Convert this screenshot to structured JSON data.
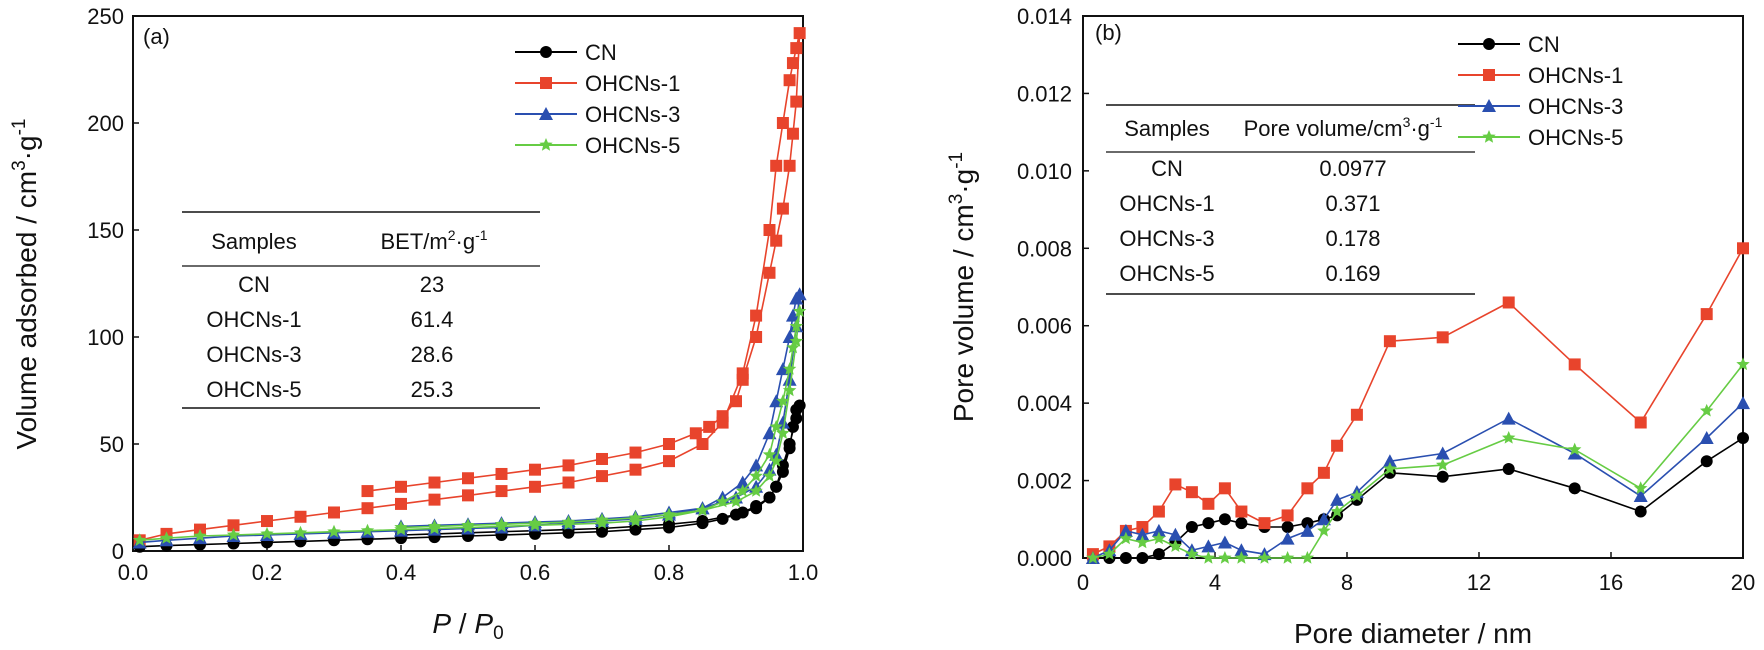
{
  "colors": {
    "CN": "#000000",
    "OHCNs-1": "#e8442c",
    "OHCNs-3": "#2a4fb0",
    "OHCNs-5": "#66cc44"
  },
  "chart_data": [
    {
      "type": "line",
      "panel": "(a)",
      "xlabel": "P / P0",
      "ylabel": "Volume adsorbed / cm³·g⁻¹",
      "xlim": [
        0,
        1.0
      ],
      "ylim": [
        0,
        250
      ],
      "xticks": [
        "0.0",
        "0.2",
        "0.4",
        "0.6",
        "0.8",
        "1.0"
      ],
      "yticks": [
        "0",
        "50",
        "100",
        "150",
        "200",
        "250"
      ],
      "legend_position": "top-right",
      "series": [
        {
          "name": "CN",
          "marker": "circle",
          "x": [
            0.01,
            0.05,
            0.1,
            0.15,
            0.2,
            0.25,
            0.3,
            0.35,
            0.4,
            0.45,
            0.5,
            0.55,
            0.6,
            0.65,
            0.7,
            0.75,
            0.8,
            0.85,
            0.88,
            0.91,
            0.93,
            0.95,
            0.96,
            0.97,
            0.98,
            0.985,
            0.99,
            0.995,
            0.99,
            0.98,
            0.97,
            0.96,
            0.95,
            0.93,
            0.9,
            0.85,
            0.8,
            0.75,
            0.7,
            0.65,
            0.6,
            0.55,
            0.5,
            0.45,
            0.4
          ],
          "y": [
            2,
            2.5,
            3,
            3.5,
            4,
            4.5,
            5,
            5.5,
            6,
            6.5,
            7,
            7.5,
            8,
            8.5,
            9,
            10,
            11,
            13,
            15,
            18,
            21,
            25,
            30,
            37,
            48,
            58,
            66,
            68,
            62,
            50,
            40,
            30,
            25,
            20,
            17,
            14,
            12.5,
            11.5,
            10.5,
            10,
            9.5,
            9,
            8.5,
            8,
            7.5
          ]
        },
        {
          "name": "OHCNs-1",
          "marker": "square",
          "x": [
            0.01,
            0.05,
            0.1,
            0.15,
            0.2,
            0.25,
            0.3,
            0.35,
            0.4,
            0.45,
            0.5,
            0.55,
            0.6,
            0.65,
            0.7,
            0.75,
            0.8,
            0.85,
            0.88,
            0.91,
            0.93,
            0.95,
            0.96,
            0.97,
            0.98,
            0.985,
            0.99,
            0.995,
            0.99,
            0.985,
            0.98,
            0.97,
            0.96,
            0.95,
            0.93,
            0.91,
            0.9,
            0.88,
            0.86,
            0.84,
            0.8,
            0.75,
            0.7,
            0.65,
            0.6,
            0.55,
            0.5,
            0.45,
            0.4,
            0.35
          ],
          "y": [
            5,
            8,
            10,
            12,
            14,
            16,
            18,
            20,
            22,
            24,
            26,
            28,
            30,
            32,
            35,
            38,
            42,
            50,
            60,
            83,
            110,
            150,
            180,
            200,
            220,
            228,
            235,
            242,
            210,
            195,
            180,
            160,
            145,
            130,
            100,
            80,
            70,
            63,
            58,
            55,
            50,
            46,
            43,
            40,
            38,
            36,
            34,
            32,
            30,
            28
          ]
        },
        {
          "name": "OHCNs-3",
          "marker": "triangle",
          "x": [
            0.01,
            0.05,
            0.1,
            0.15,
            0.2,
            0.25,
            0.3,
            0.35,
            0.4,
            0.45,
            0.5,
            0.55,
            0.6,
            0.65,
            0.7,
            0.75,
            0.8,
            0.85,
            0.88,
            0.91,
            0.93,
            0.95,
            0.96,
            0.97,
            0.98,
            0.985,
            0.99,
            0.995,
            0.99,
            0.98,
            0.97,
            0.96,
            0.95,
            0.93,
            0.9,
            0.85,
            0.8,
            0.75,
            0.7,
            0.65,
            0.6,
            0.55,
            0.5,
            0.45,
            0.4
          ],
          "y": [
            4,
            5,
            6,
            7,
            7.5,
            8,
            8.5,
            9,
            9.5,
            10,
            10.5,
            11,
            12,
            13,
            14,
            15,
            17,
            20,
            25,
            32,
            40,
            55,
            70,
            85,
            100,
            110,
            118,
            120,
            105,
            80,
            60,
            45,
            38,
            30,
            25,
            20,
            18,
            16,
            15,
            14,
            13.5,
            13,
            12.5,
            12,
            11.5
          ]
        },
        {
          "name": "OHCNs-5",
          "marker": "star",
          "x": [
            0.01,
            0.05,
            0.1,
            0.15,
            0.2,
            0.25,
            0.3,
            0.35,
            0.4,
            0.45,
            0.5,
            0.55,
            0.6,
            0.65,
            0.7,
            0.75,
            0.8,
            0.85,
            0.88,
            0.91,
            0.93,
            0.95,
            0.96,
            0.97,
            0.98,
            0.985,
            0.99,
            0.995,
            0.99,
            0.98,
            0.97,
            0.96,
            0.95,
            0.93,
            0.9,
            0.85,
            0.8,
            0.75,
            0.7,
            0.65,
            0.6,
            0.55,
            0.5,
            0.45,
            0.4
          ],
          "y": [
            5,
            6,
            7,
            7.5,
            8,
            8.5,
            9,
            9.5,
            10,
            10.5,
            11,
            11.5,
            12,
            12.5,
            13,
            14,
            16,
            19,
            23,
            28,
            35,
            45,
            58,
            70,
            85,
            95,
            105,
            112,
            98,
            75,
            55,
            42,
            35,
            28,
            23,
            19,
            17,
            15.5,
            14.5,
            13.5,
            13,
            12.5,
            12,
            11.5,
            11
          ]
        }
      ],
      "table": {
        "headers": [
          "Samples",
          "BET/m²·g⁻¹"
        ],
        "rows": [
          [
            "CN",
            "23"
          ],
          [
            "OHCNs-1",
            "61.4"
          ],
          [
            "OHCNs-3",
            "28.6"
          ],
          [
            "OHCNs-5",
            "25.3"
          ]
        ]
      }
    },
    {
      "type": "line",
      "panel": "(b)",
      "xlabel": "Pore diameter / nm",
      "ylabel": "Pore volume / cm³·g⁻¹",
      "xlim": [
        0,
        20
      ],
      "ylim": [
        0,
        0.014
      ],
      "xticks": [
        "0",
        "4",
        "8",
        "12",
        "16",
        "20"
      ],
      "yticks": [
        "0.000",
        "0.002",
        "0.004",
        "0.006",
        "0.008",
        "0.010",
        "0.012",
        "0.014"
      ],
      "legend_position": "top-right",
      "series": [
        {
          "name": "CN",
          "marker": "circle",
          "x": [
            0.3,
            0.8,
            1.3,
            1.8,
            2.3,
            2.8,
            3.3,
            3.8,
            4.3,
            4.8,
            5.5,
            6.2,
            6.8,
            7.3,
            7.7,
            8.3,
            9.3,
            10.9,
            12.9,
            14.9,
            16.9,
            18.9,
            20
          ],
          "y": [
            0,
            0,
            0,
            0,
            0.0001,
            0.0004,
            0.0008,
            0.0009,
            0.001,
            0.0009,
            0.0008,
            0.0008,
            0.0009,
            0.001,
            0.0011,
            0.0015,
            0.0022,
            0.0021,
            0.0023,
            0.0018,
            0.0012,
            0.0025,
            0.0031
          ]
        },
        {
          "name": "OHCNs-1",
          "marker": "square",
          "x": [
            0.3,
            0.8,
            1.3,
            1.8,
            2.3,
            2.8,
            3.3,
            3.8,
            4.3,
            4.8,
            5.5,
            6.2,
            6.8,
            7.3,
            7.7,
            8.3,
            9.3,
            10.9,
            12.9,
            14.9,
            16.9,
            18.9,
            20
          ],
          "y": [
            0.0001,
            0.0003,
            0.0007,
            0.0008,
            0.0012,
            0.0019,
            0.0017,
            0.0014,
            0.0018,
            0.0012,
            0.0009,
            0.0011,
            0.0018,
            0.0022,
            0.0029,
            0.0037,
            0.0056,
            0.0057,
            0.0066,
            0.005,
            0.0035,
            0.0063,
            0.008
          ]
        },
        {
          "name": "OHCNs-3",
          "marker": "triangle",
          "x": [
            0.3,
            0.8,
            1.3,
            1.8,
            2.3,
            2.8,
            3.3,
            3.8,
            4.3,
            4.8,
            5.5,
            6.2,
            6.8,
            7.3,
            7.7,
            8.3,
            9.3,
            10.9,
            12.9,
            14.9,
            16.9,
            18.9,
            20
          ],
          "y": [
            0,
            0.0002,
            0.0007,
            0.0006,
            0.0007,
            0.0006,
            0.0002,
            0.0003,
            0.0004,
            0.0002,
            0.0001,
            0.0005,
            0.0007,
            0.001,
            0.0015,
            0.0017,
            0.0025,
            0.0027,
            0.0036,
            0.0027,
            0.0016,
            0.0031,
            0.004
          ]
        },
        {
          "name": "OHCNs-5",
          "marker": "star",
          "x": [
            0.3,
            0.8,
            1.3,
            1.8,
            2.3,
            2.8,
            3.3,
            3.8,
            4.3,
            4.8,
            5.5,
            6.2,
            6.8,
            7.3,
            7.7,
            8.3,
            9.3,
            10.9,
            12.9,
            14.9,
            16.9,
            18.9,
            20
          ],
          "y": [
            0,
            0.0001,
            0.0005,
            0.0004,
            0.0005,
            0.0003,
            0.0001,
            0,
            0,
            0,
            0,
            0,
            0,
            0.0007,
            0.0012,
            0.0016,
            0.0023,
            0.0024,
            0.0031,
            0.0028,
            0.0018,
            0.0038,
            0.005
          ]
        }
      ],
      "table": {
        "headers": [
          "Samples",
          "Pore volume/cm³·g⁻¹"
        ],
        "rows": [
          [
            "CN",
            "0.0977"
          ],
          [
            "OHCNs-1",
            "0.371"
          ],
          [
            "OHCNs-3",
            "0.178"
          ],
          [
            "OHCNs-5",
            "0.169"
          ]
        ]
      }
    }
  ]
}
